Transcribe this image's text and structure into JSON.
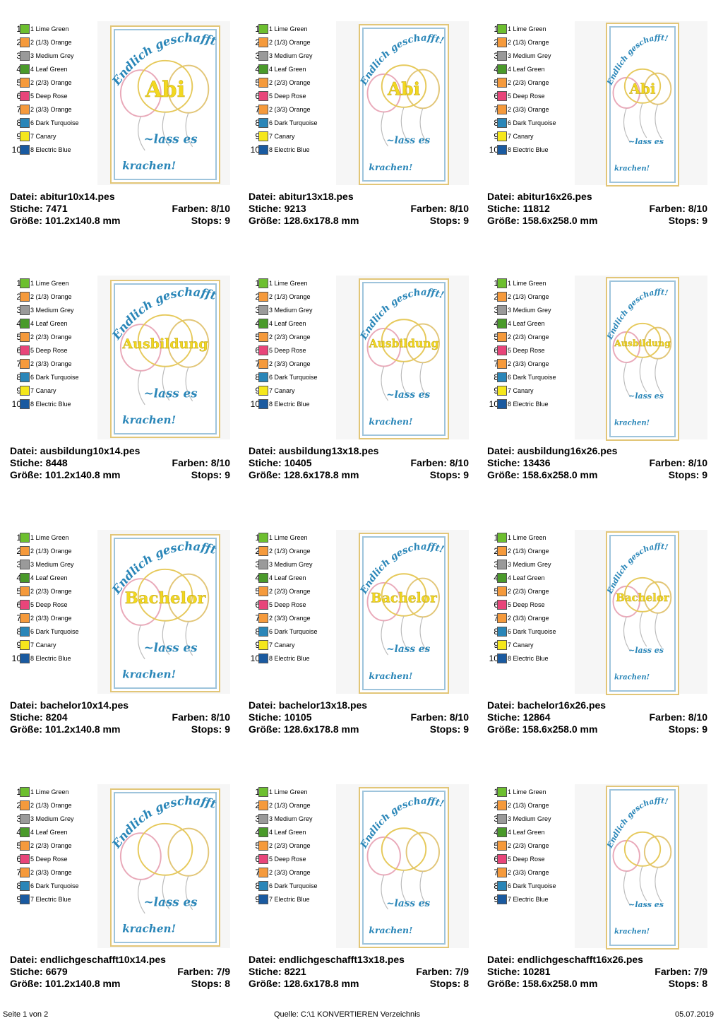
{
  "palette10": [
    {
      "num": "1",
      "label": "1 Lime Green",
      "color": "#6dbf2f"
    },
    {
      "num": "2",
      "label": "2 (1/3) Orange",
      "color": "#f59a3c"
    },
    {
      "num": "3",
      "label": "3 Medium Grey",
      "color": "#9a9a9a"
    },
    {
      "num": "4",
      "label": "4 Leaf Green",
      "color": "#4a9a2a"
    },
    {
      "num": "5",
      "label": "2 (2/3) Orange",
      "color": "#f59a3c"
    },
    {
      "num": "6",
      "label": "5 Deep Rose",
      "color": "#e8457a"
    },
    {
      "num": "7",
      "label": "2 (3/3) Orange",
      "color": "#f59a3c"
    },
    {
      "num": "8",
      "label": "6 Dark Turquoise",
      "color": "#2a86b8"
    },
    {
      "num": "9",
      "label": "7 Canary",
      "color": "#f5e71c"
    },
    {
      "num": "10",
      "label": "8 Electric Blue",
      "color": "#1a5aa0"
    }
  ],
  "palette9": [
    {
      "num": "1",
      "label": "1 Lime Green",
      "color": "#6dbf2f"
    },
    {
      "num": "2",
      "label": "2 (1/3) Orange",
      "color": "#f59a3c"
    },
    {
      "num": "3",
      "label": "3 Medium Grey",
      "color": "#9a9a9a"
    },
    {
      "num": "4",
      "label": "4 Leaf Green",
      "color": "#4a9a2a"
    },
    {
      "num": "5",
      "label": "2 (2/3) Orange",
      "color": "#f59a3c"
    },
    {
      "num": "6",
      "label": "5 Deep Rose",
      "color": "#e8457a"
    },
    {
      "num": "7",
      "label": "2 (3/3) Orange",
      "color": "#f59a3c"
    },
    {
      "num": "8",
      "label": "6 Dark Turquoise",
      "color": "#2a86b8"
    },
    {
      "num": "9",
      "label": "7 Electric Blue",
      "color": "#1a5aa0"
    }
  ],
  "design_text": {
    "top": "Endlich geschafft!",
    "middle": "~lass es",
    "bottom": "krachen!"
  },
  "entries": [
    {
      "file": "Datei: abitur10x14.pes",
      "stitches": "Stiche: 7471",
      "colors": "Farben: 8/10",
      "size": "Größe: 101.2x140.8 mm",
      "stops": "Stops: 9",
      "word": "Abi"
    },
    {
      "file": "Datei: abitur13x18.pes",
      "stitches": "Stiche: 9213",
      "colors": "Farben: 8/10",
      "size": "Größe: 128.6x178.8 mm",
      "stops": "Stops: 9",
      "word": "Abi"
    },
    {
      "file": "Datei: abitur16x26.pes",
      "stitches": "Stiche: 11812",
      "colors": "Farben: 8/10",
      "size": "Größe: 158.6x258.0 mm",
      "stops": "Stops: 9",
      "word": "Abi"
    },
    {
      "file": "Datei: ausbildung10x14.pes",
      "stitches": "Stiche: 8448",
      "colors": "Farben: 8/10",
      "size": "Größe: 101.2x140.8 mm",
      "stops": "Stops: 9",
      "word": "Ausbildung"
    },
    {
      "file": "Datei: ausbildung13x18.pes",
      "stitches": "Stiche: 10405",
      "colors": "Farben: 8/10",
      "size": "Größe: 128.6x178.8 mm",
      "stops": "Stops: 9",
      "word": "Ausbildung"
    },
    {
      "file": "Datei: ausbildung16x26.pes",
      "stitches": "Stiche: 13436",
      "colors": "Farben: 8/10",
      "size": "Größe: 158.6x258.0 mm",
      "stops": "Stops: 9",
      "word": "Ausbildung"
    },
    {
      "file": "Datei: bachelor10x14.pes",
      "stitches": "Stiche: 8204",
      "colors": "Farben: 8/10",
      "size": "Größe: 101.2x140.8 mm",
      "stops": "Stops: 9",
      "word": "Bachelor"
    },
    {
      "file": "Datei: bachelor13x18.pes",
      "stitches": "Stiche: 10105",
      "colors": "Farben: 8/10",
      "size": "Größe: 128.6x178.8 mm",
      "stops": "Stops: 9",
      "word": "Bachelor"
    },
    {
      "file": "Datei: bachelor16x26.pes",
      "stitches": "Stiche: 12864",
      "colors": "Farben: 8/10",
      "size": "Größe: 158.6x258.0 mm",
      "stops": "Stops: 9",
      "word": "Bachelor"
    },
    {
      "file": "Datei: endlichgeschafft10x14.pes",
      "stitches": "Stiche: 6679",
      "colors": "Farben: 7/9",
      "size": "Größe: 101.2x140.8 mm",
      "stops": "Stops: 8",
      "word": ""
    },
    {
      "file": "Datei: endlichgeschafft13x18.pes",
      "stitches": "Stiche: 8221",
      "colors": "Farben: 7/9",
      "size": "Größe: 128.6x178.8 mm",
      "stops": "Stops: 8",
      "word": ""
    },
    {
      "file": "Datei: endlichgeschafft16x26.pes",
      "stitches": "Stiche: 10281",
      "colors": "Farben: 7/9",
      "size": "Größe: 158.6x258.0 mm",
      "stops": "Stops: 8",
      "word": ""
    }
  ],
  "footer": {
    "page": "Seite 1 von 2",
    "source": "Quelle: C:\\1 KONVERTIEREN Verzeichnis",
    "date": "05.07.2019"
  }
}
